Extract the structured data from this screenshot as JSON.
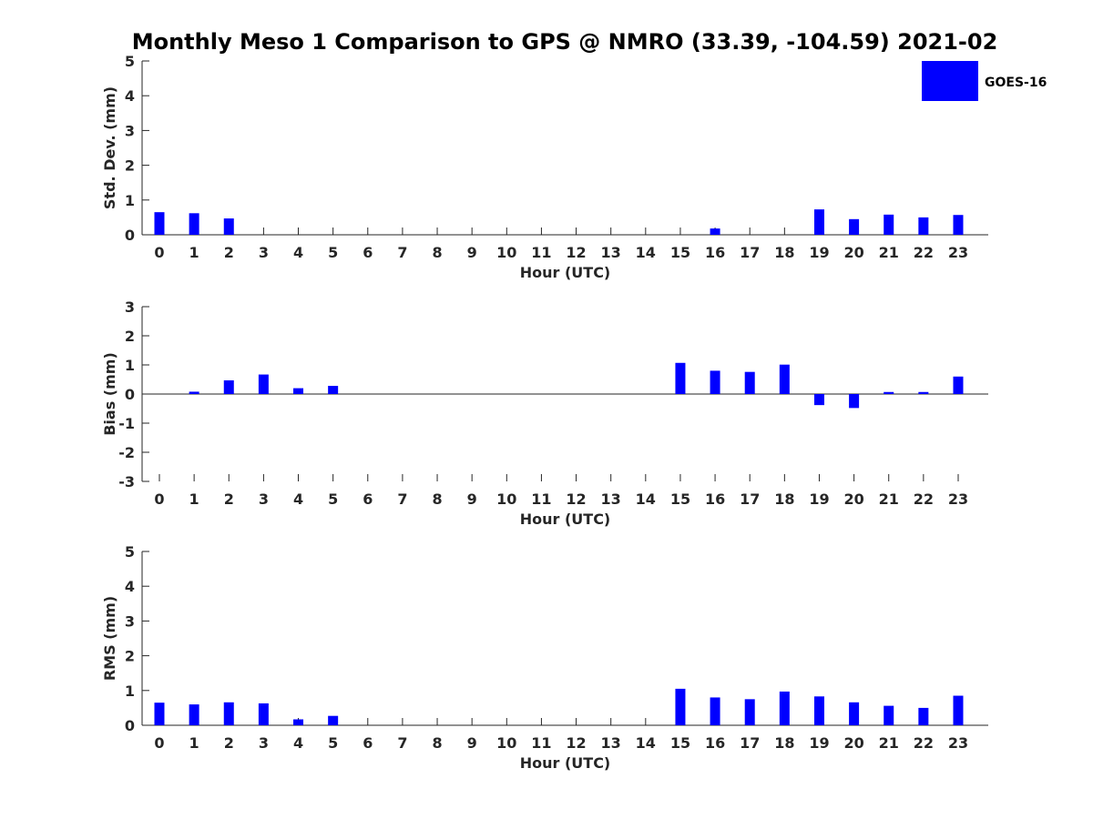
{
  "chart_data": {
    "title": "Monthly Meso 1 Comparison to GPS @ NMRO (33.39, -104.59) 2021-02",
    "legend": {
      "label": "GOES-16",
      "placement": "top-right"
    },
    "bar_color": "#0000ff",
    "panels": [
      {
        "type": "bar",
        "ylabel": "Std. Dev. (mm)",
        "xlabel": "Hour (UTC)",
        "ylim": [
          0,
          5
        ],
        "yticks": [
          0,
          1,
          2,
          3,
          4,
          5
        ],
        "x": [
          0,
          1,
          2,
          3,
          4,
          5,
          6,
          7,
          8,
          9,
          10,
          11,
          12,
          13,
          14,
          15,
          16,
          17,
          18,
          19,
          20,
          21,
          22,
          23
        ],
        "values": [
          0.65,
          0.62,
          0.47,
          null,
          null,
          null,
          null,
          null,
          null,
          null,
          null,
          null,
          null,
          null,
          null,
          null,
          0.18,
          null,
          null,
          0.73,
          0.45,
          0.58,
          0.5,
          0.57
        ]
      },
      {
        "type": "bar",
        "ylabel": "Bias (mm)",
        "xlabel": "Hour (UTC)",
        "ylim": [
          -3,
          3
        ],
        "yticks": [
          -3,
          -2,
          -1,
          0,
          1,
          2,
          3
        ],
        "x": [
          0,
          1,
          2,
          3,
          4,
          5,
          6,
          7,
          8,
          9,
          10,
          11,
          12,
          13,
          14,
          15,
          16,
          17,
          18,
          19,
          20,
          21,
          22,
          23
        ],
        "values": [
          null,
          0.08,
          0.47,
          0.67,
          0.2,
          0.28,
          null,
          null,
          null,
          null,
          null,
          null,
          null,
          null,
          null,
          1.07,
          0.8,
          0.76,
          1.01,
          -0.38,
          -0.48,
          0.07,
          0.07,
          0.6
        ]
      },
      {
        "type": "bar",
        "ylabel": "RMS (mm)",
        "xlabel": "Hour (UTC)",
        "ylim": [
          0,
          5
        ],
        "yticks": [
          0,
          1,
          2,
          3,
          4,
          5
        ],
        "x": [
          0,
          1,
          2,
          3,
          4,
          5,
          6,
          7,
          8,
          9,
          10,
          11,
          12,
          13,
          14,
          15,
          16,
          17,
          18,
          19,
          20,
          21,
          22,
          23
        ],
        "values": [
          0.65,
          0.6,
          0.66,
          0.63,
          0.17,
          0.27,
          null,
          null,
          null,
          null,
          null,
          null,
          null,
          null,
          null,
          1.05,
          0.8,
          0.75,
          0.97,
          0.83,
          0.66,
          0.56,
          0.5,
          0.85
        ]
      }
    ]
  }
}
